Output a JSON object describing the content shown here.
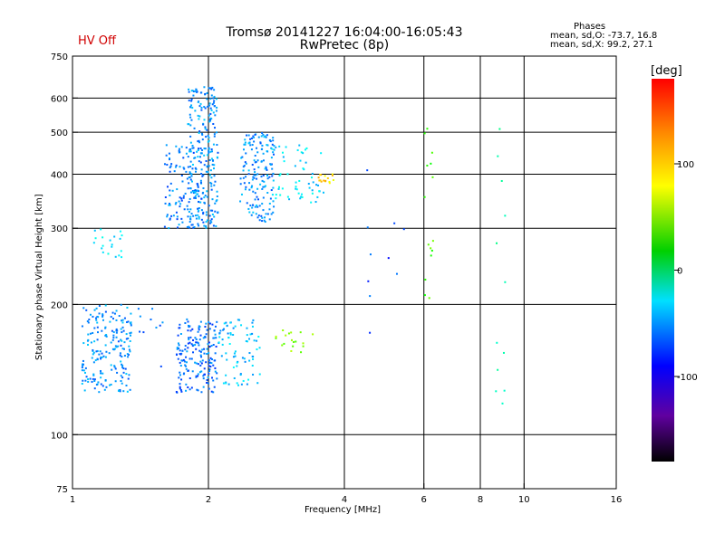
{
  "header": {
    "title_line1": "Tromsø 20141227 16:04:00-16:05:43",
    "title_line2": "RwPretec (8p)",
    "hv_status": "HV Off",
    "stats_title": "Phases",
    "stats_o": "mean, sd,O: -73.7, 16.8",
    "stats_x": "mean, sd,X:  99.2, 27.1"
  },
  "colors": {
    "hv_status": "#d00000",
    "gridline": "#000000"
  },
  "chart_data": {
    "type": "scatter",
    "xlabel": "Frequency [MHz]",
    "ylabel": "Stationary phase Virtual Height [km]",
    "x_scale": "log",
    "y_scale": "log",
    "xlim": [
      1,
      16
    ],
    "ylim": [
      75,
      750
    ],
    "x_ticks": [
      1,
      2,
      4,
      6,
      8,
      10,
      16
    ],
    "x_gridlines": [
      2,
      4,
      6,
      8,
      10
    ],
    "y_ticks": [
      75,
      100,
      200,
      300,
      400,
      500,
      600,
      750
    ],
    "y_gridlines": [
      100,
      200,
      300,
      400,
      500,
      600
    ],
    "colorbar": {
      "label": "[deg]",
      "range": [
        -180,
        180
      ],
      "ticks": [
        100,
        0,
        -100
      ],
      "colormap": "rainbow"
    },
    "clusters": [
      {
        "x": [
          1.05,
          1.35
        ],
        "y": [
          125,
          200
        ],
        "phase": -95,
        "count": 200
      },
      {
        "x": [
          1.1,
          1.3
        ],
        "y": [
          255,
          300
        ],
        "phase": -70,
        "count": 20
      },
      {
        "x": [
          1.7,
          2.1
        ],
        "y": [
          125,
          185
        ],
        "phase": -105,
        "count": 180
      },
      {
        "x": [
          2.1,
          2.6
        ],
        "y": [
          130,
          185
        ],
        "phase": -80,
        "count": 80
      },
      {
        "x": [
          1.6,
          1.95
        ],
        "y": [
          300,
          470
        ],
        "phase": -100,
        "count": 120
      },
      {
        "x": [
          1.8,
          2.1
        ],
        "y": [
          300,
          640
        ],
        "phase": -95,
        "count": 240
      },
      {
        "x": [
          2.35,
          2.8
        ],
        "y": [
          310,
          500
        ],
        "phase": -95,
        "count": 160
      },
      {
        "x": [
          2.75,
          3.6
        ],
        "y": [
          340,
          470
        ],
        "phase": -70,
        "count": 60
      },
      {
        "x": [
          2.8,
          3.5
        ],
        "y": [
          155,
          175
        ],
        "phase": 60,
        "count": 18
      },
      {
        "x": [
          3.5,
          3.8
        ],
        "y": [
          380,
          400
        ],
        "phase": 110,
        "count": 16
      },
      {
        "x": [
          1.4,
          1.6
        ],
        "y": [
          140,
          230
        ],
        "phase": -110,
        "count": 10
      },
      {
        "x": [
          6.0,
          6.3
        ],
        "y": [
          200,
          600
        ],
        "phase": 40,
        "count": 15
      },
      {
        "x": [
          8.6,
          9.1
        ],
        "y": [
          100,
          600
        ],
        "phase": -40,
        "count": 12
      },
      {
        "x": [
          4.4,
          5.5
        ],
        "y": [
          140,
          420
        ],
        "phase": -120,
        "count": 10
      }
    ]
  }
}
